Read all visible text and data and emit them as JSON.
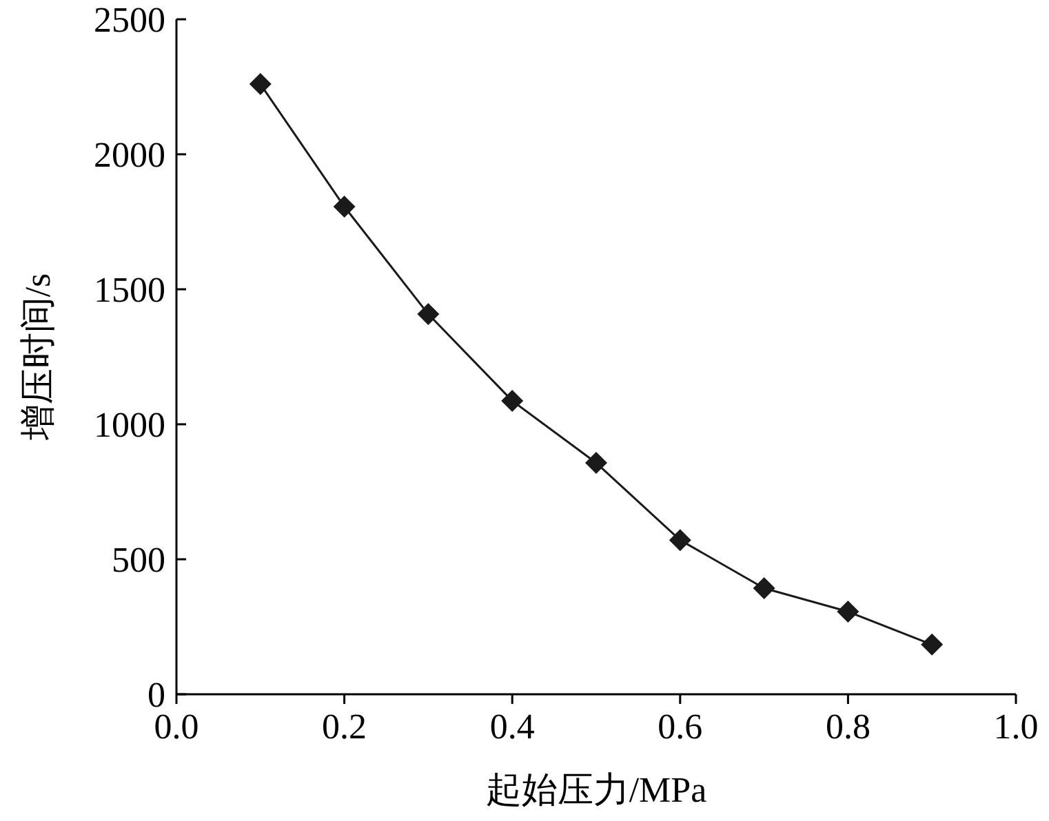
{
  "chart_data": {
    "type": "line",
    "xlabel": "起始压力/MPa",
    "ylabel": "增压时间/s",
    "x": [
      0.1,
      0.2,
      0.3,
      0.4,
      0.5,
      0.6,
      0.7,
      0.8,
      0.9
    ],
    "series": [
      {
        "color": "#1a1a1a",
        "values": [
          2260,
          1806,
          1408,
          1087,
          857,
          571,
          393,
          306,
          184
        ]
      }
    ],
    "xlim": [
      0,
      1
    ],
    "ylim": [
      0,
      2500
    ],
    "xticks": [
      {
        "value": 0,
        "label": "0.0"
      },
      0.2,
      0.4,
      0.6,
      0.8,
      {
        "value": 1,
        "label": "1.0"
      }
    ],
    "yticks": [
      0,
      500,
      1000,
      1500,
      2000,
      2500
    ],
    "marker": "diamond",
    "line_style": "solid"
  }
}
